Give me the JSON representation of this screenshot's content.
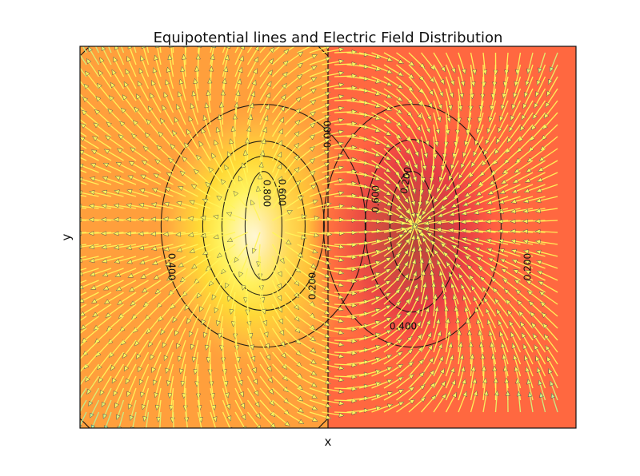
{
  "chart_data": {
    "type": "heatmap",
    "title": "Equipotential lines and Electric Field Distribution",
    "xlabel": "x",
    "ylabel": "y",
    "xticks": [],
    "yticks": [],
    "grid": false,
    "legend": "none",
    "colormap": "hot-like",
    "overlay": "quiver",
    "regions": [
      {
        "name": "left-half",
        "color": "#ff9f3c"
      },
      {
        "name": "right-half",
        "color": "#ff6840"
      }
    ],
    "charges": [
      {
        "polarity": "positive",
        "x": 0.37,
        "y": 0.53,
        "peak_color": "#fffbe6"
      },
      {
        "polarity": "negative",
        "x": 0.67,
        "y": 0.53,
        "peak_color": "#b6443a"
      }
    ],
    "contour_labels": [
      {
        "text": "0.000"
      },
      {
        "text": "0.800"
      },
      {
        "text": "0.600"
      },
      {
        "text": "0.400"
      },
      {
        "text": "0.200"
      },
      {
        "text": "0.600"
      },
      {
        "text": "0.200"
      },
      {
        "text": "0.400"
      },
      {
        "text": "0.200"
      }
    ]
  }
}
